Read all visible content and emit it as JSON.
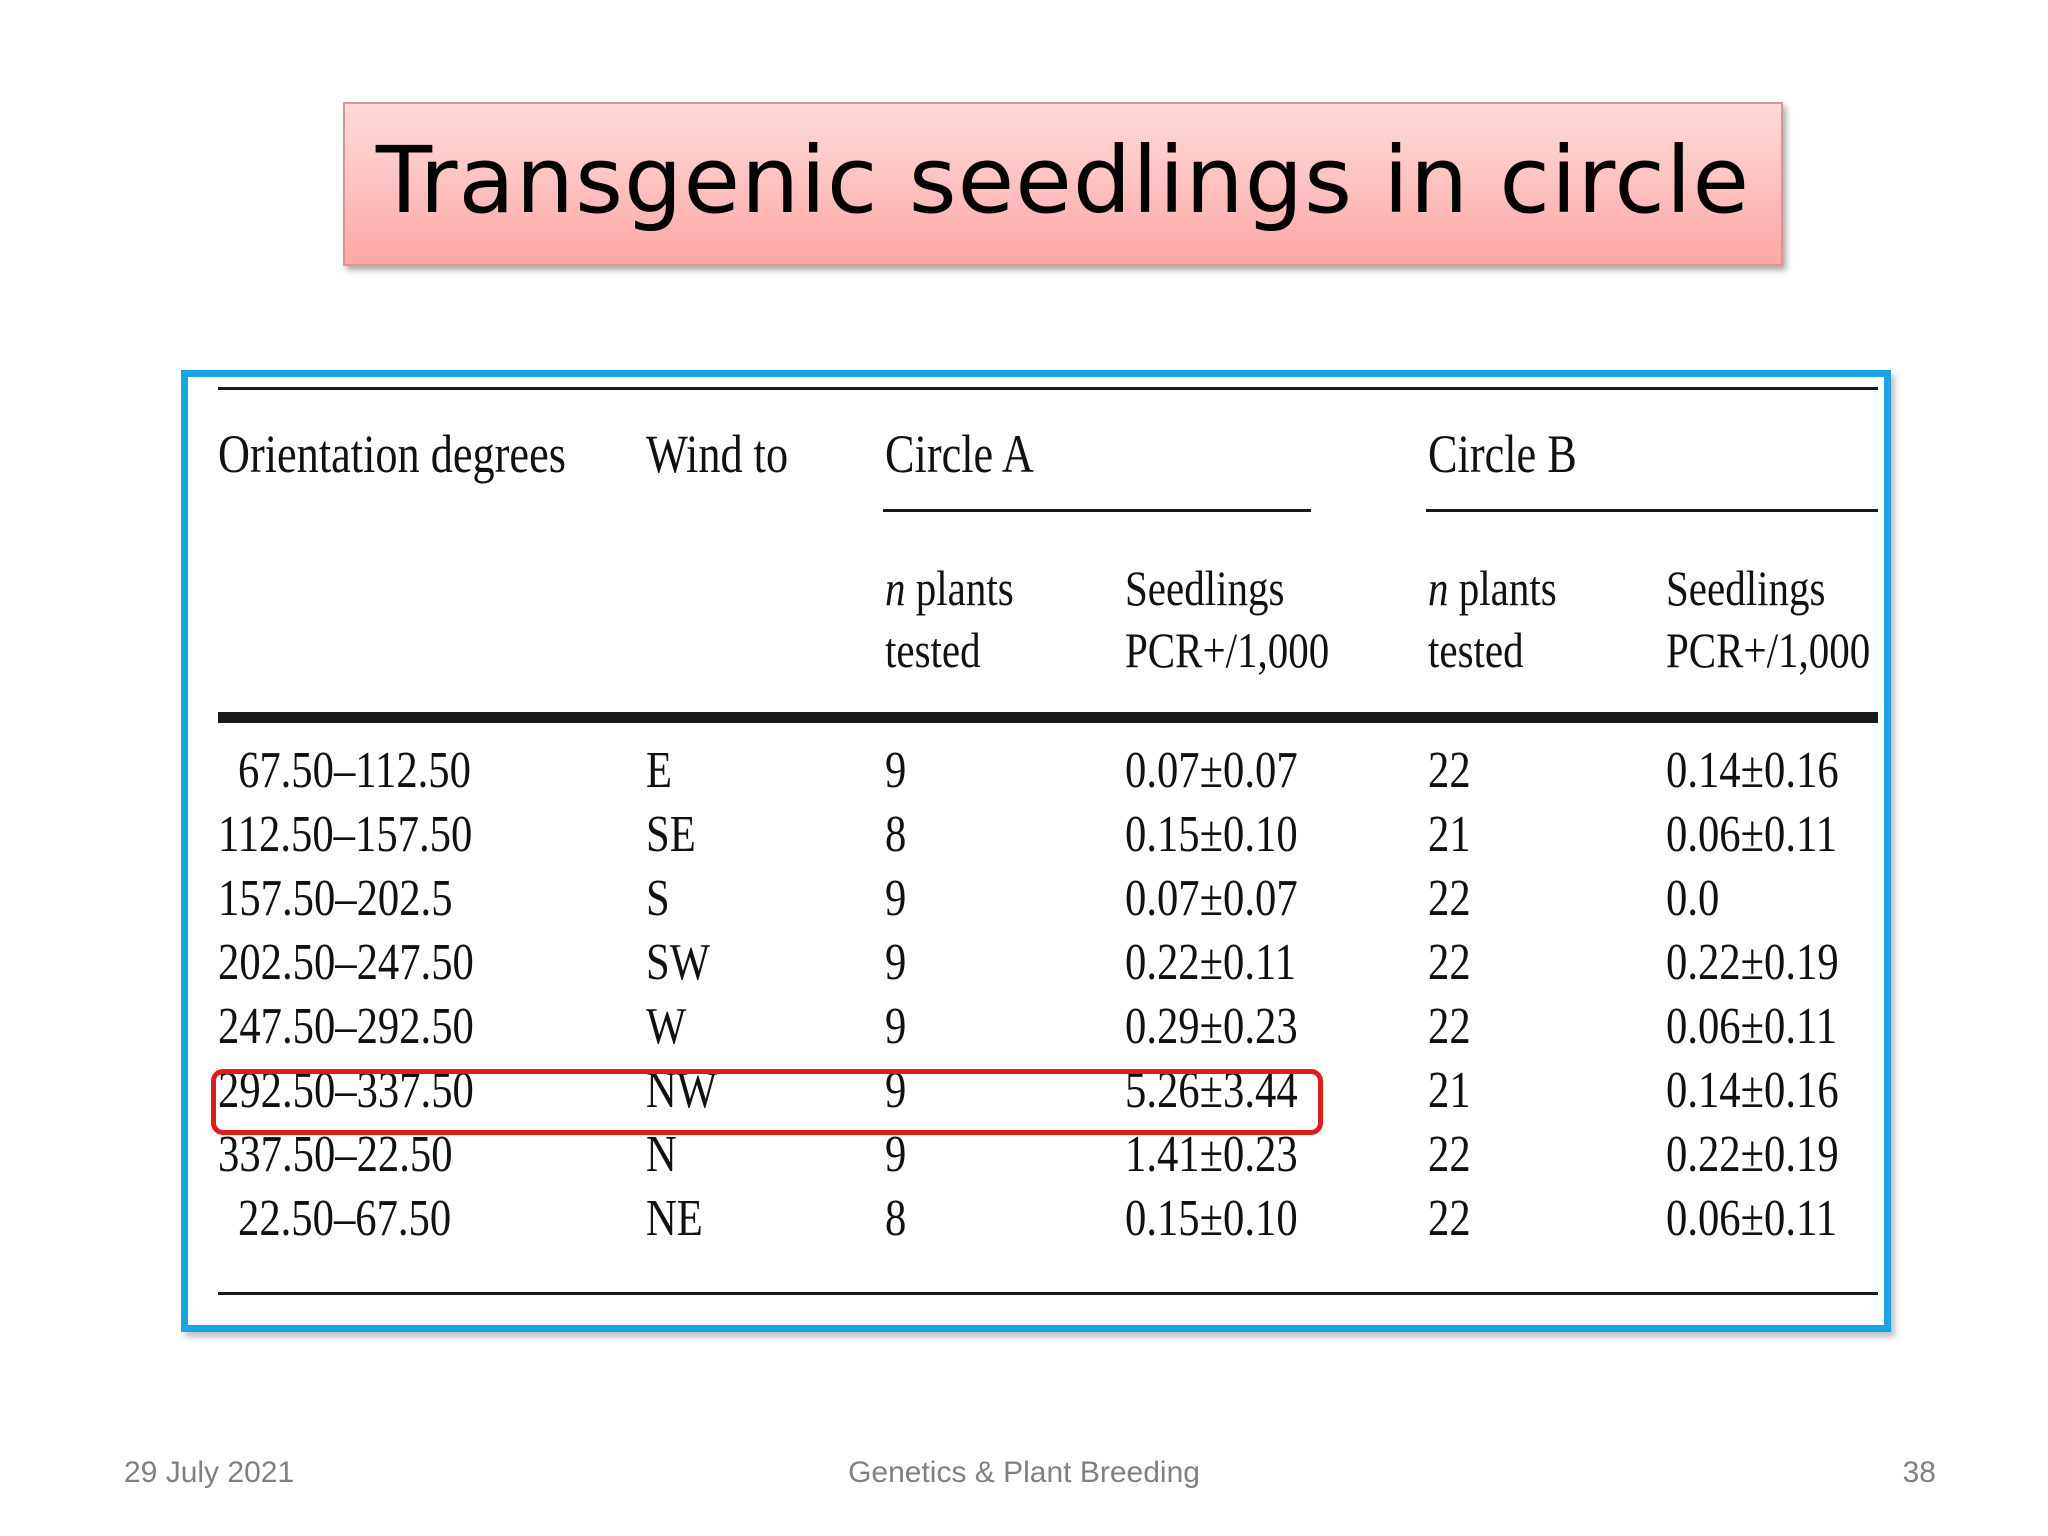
{
  "slide": {
    "title": "Transgenic seedlings in circle",
    "footer": {
      "date": "29 July 2021",
      "center": "Genetics & Plant Breeding",
      "page_number": "38"
    }
  },
  "table": {
    "headers": {
      "orientation": "Orientation degrees",
      "wind": "Wind to",
      "circle_a": "Circle A",
      "circle_b": "Circle B",
      "n_plants_italic": "n",
      "n_plants_rest": " plants",
      "tested": "tested",
      "seedlings": "Seedlings",
      "pcr": "PCR+/1,000"
    },
    "rows": [
      {
        "orientation": "67.50–112.50",
        "wind": "E",
        "a_n": "9",
        "a_pcr": "0.07±0.07",
        "b_n": "22",
        "b_pcr": "0.14±0.16"
      },
      {
        "orientation": "112.50–157.50",
        "wind": "SE",
        "a_n": "8",
        "a_pcr": "0.15±0.10",
        "b_n": "21",
        "b_pcr": "0.06±0.11"
      },
      {
        "orientation": "157.50–202.5",
        "wind": "S",
        "a_n": "9",
        "a_pcr": "0.07±0.07",
        "b_n": "22",
        "b_pcr": "0.0"
      },
      {
        "orientation": "202.50–247.50",
        "wind": "SW",
        "a_n": "9",
        "a_pcr": "0.22±0.11",
        "b_n": "22",
        "b_pcr": "0.22±0.19"
      },
      {
        "orientation": "247.50–292.50",
        "wind": "W",
        "a_n": "9",
        "a_pcr": "0.29±0.23",
        "b_n": "22",
        "b_pcr": "0.06±0.11"
      },
      {
        "orientation": "292.50–337.50",
        "wind": "NW",
        "a_n": "9",
        "a_pcr": "5.26±3.44",
        "b_n": "21",
        "b_pcr": "0.14±0.16"
      },
      {
        "orientation": "337.50–22.50",
        "wind": "N",
        "a_n": "9",
        "a_pcr": "1.41±0.23",
        "b_n": "22",
        "b_pcr": "0.22±0.19"
      },
      {
        "orientation": "22.50–67.50",
        "wind": "NE",
        "a_n": "8",
        "a_pcr": "0.15±0.10",
        "b_n": "22",
        "b_pcr": "0.06±0.11"
      }
    ]
  },
  "colors": {
    "frame": "#1aa5e2",
    "highlight": "#e01b1b",
    "title_fill": "#ffc4c4"
  }
}
